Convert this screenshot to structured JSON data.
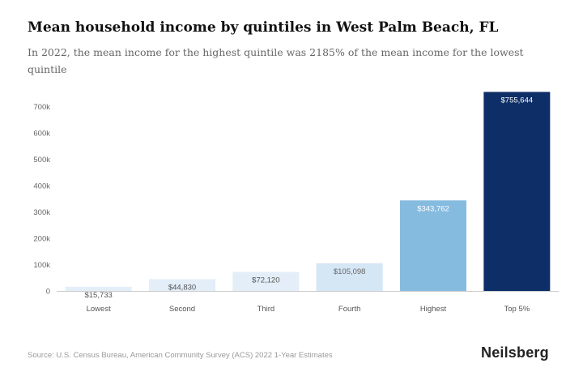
{
  "header": {
    "title": "Mean household income by quintiles in West Palm Beach, FL",
    "subtitle": "In 2022, the mean income for the highest quintile was 2185% of the mean income for the lowest quintile"
  },
  "chart_data": {
    "type": "bar",
    "categories": [
      "Lowest",
      "Second",
      "Third",
      "Fourth",
      "Highest",
      "Top 5%"
    ],
    "values": [
      15733,
      44830,
      72120,
      105098,
      343762,
      755644
    ],
    "data_labels": [
      "$15,733",
      "$44,830",
      "$72,120",
      "$105,098",
      "$343,762",
      "$755,644"
    ],
    "bar_colors": [
      "#e3eef8",
      "#e3eef8",
      "#e3eef8",
      "#d5e6f5",
      "#86bbe0",
      "#0d2e67"
    ],
    "label_colors": [
      "#555555",
      "#555555",
      "#555555",
      "#666666",
      "#ffffff",
      "#ffffff"
    ],
    "yticks": [
      0,
      100000,
      200000,
      300000,
      400000,
      500000,
      600000,
      700000
    ],
    "ytick_labels": [
      "0",
      "100k",
      "200k",
      "300k",
      "400k",
      "500k",
      "600k",
      "700k"
    ],
    "ylim": [
      0,
      760000
    ],
    "grid": false,
    "xlabel": "",
    "ylabel": ""
  },
  "footer": {
    "source": "Source: U.S. Census Bureau, American Community Survey (ACS) 2022 1-Year Estimates",
    "brand": "Neilsberg"
  }
}
